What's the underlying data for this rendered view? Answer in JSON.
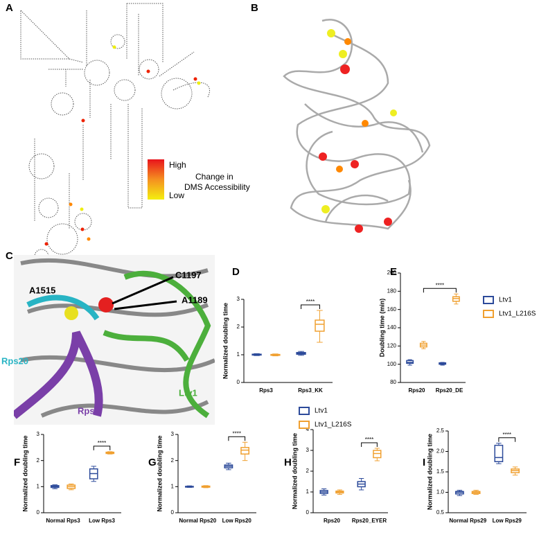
{
  "panels": {
    "A": {
      "label": "A",
      "legend_high": "High",
      "legend_low": "Low",
      "legend_title": [
        "Change in",
        "DMS Accessibility"
      ]
    },
    "B": {
      "label": "B"
    },
    "C": {
      "label": "C",
      "annotations": [
        "A1515",
        "C1197",
        "A1189",
        "Rps20",
        "Rps3",
        "Ltv1"
      ]
    }
  },
  "chart_data": [
    {
      "type": "box",
      "panel": "D",
      "ylabel": "Normalized doubling time",
      "categories": [
        "Rps3",
        "Rps3_KK"
      ],
      "ylim": [
        0,
        3
      ],
      "yticks": [
        0,
        1,
        2,
        3
      ],
      "series": [
        {
          "color": "#2c4a9a",
          "boxes": [
            [
              0.97,
              0.99,
              1.0,
              1.02,
              1.04
            ],
            [
              0.98,
              1.02,
              1.05,
              1.08,
              1.12
            ]
          ]
        },
        {
          "color": "#f0a030",
          "boxes": [
            [
              0.96,
              0.98,
              1.0,
              1.01,
              1.03
            ],
            [
              1.45,
              1.85,
              2.1,
              2.25,
              2.6
            ]
          ]
        }
      ],
      "significance": {
        "label": "****",
        "from": [
          1,
          0
        ],
        "to": [
          1,
          1
        ]
      }
    },
    {
      "type": "box",
      "panel": "E",
      "ylabel": "Doubling time (min)",
      "categories": [
        "Rps20",
        "Rps20_DE"
      ],
      "ylim": [
        80,
        200
      ],
      "yticks": [
        80,
        100,
        120,
        140,
        160,
        180,
        200
      ],
      "series": [
        {
          "name": "Ltv1",
          "color": "#2c4a9a",
          "boxes": [
            [
              99,
              101,
              102,
              104,
              105
            ],
            [
              99,
              100,
              101,
              101.5,
              102
            ]
          ]
        },
        {
          "name": "Ltv1_L216S",
          "color": "#f0a030",
          "boxes": [
            [
              117,
              119,
              121,
              123,
              125
            ],
            [
              166,
              169,
              172,
              174,
              177
            ]
          ]
        }
      ],
      "significance": {
        "label": "****",
        "from": [
          0,
          1
        ],
        "to": [
          1,
          1
        ]
      }
    },
    {
      "type": "box",
      "panel": "F",
      "ylabel": "Normalized doubling time",
      "categories": [
        "Normal Rps3",
        "Low Rps3"
      ],
      "ylim": [
        0,
        3
      ],
      "yticks": [
        0,
        1,
        2,
        3
      ],
      "series": [
        {
          "color": "#2c4a9a",
          "boxes": [
            [
              0.92,
              0.97,
              1.0,
              1.04,
              1.07
            ],
            [
              1.2,
              1.3,
              1.5,
              1.68,
              1.78
            ]
          ]
        },
        {
          "color": "#f0a030",
          "boxes": [
            [
              0.88,
              0.93,
              1.0,
              1.06,
              1.1
            ],
            [
              2.25,
              2.27,
              2.3,
              2.32,
              2.34
            ]
          ]
        }
      ],
      "significance": {
        "label": "****",
        "from": [
          1,
          0
        ],
        "to": [
          1,
          1
        ]
      }
    },
    {
      "type": "box",
      "panel": "G",
      "ylabel": "Normalized doubling time",
      "categories": [
        "Normal Rps20",
        "Low Rps20"
      ],
      "ylim": [
        0,
        3
      ],
      "yticks": [
        0,
        1,
        2,
        3
      ],
      "series": [
        {
          "color": "#2c4a9a",
          "boxes": [
            [
              0.97,
              0.99,
              1.0,
              1.01,
              1.03
            ],
            [
              1.65,
              1.72,
              1.78,
              1.83,
              1.9
            ]
          ]
        },
        {
          "color": "#f0a030",
          "boxes": [
            [
              0.96,
              0.98,
              1.0,
              1.02,
              1.04
            ],
            [
              2.0,
              2.25,
              2.4,
              2.5,
              2.7
            ]
          ]
        }
      ],
      "significance": {
        "label": "****",
        "from": [
          1,
          0
        ],
        "to": [
          1,
          1
        ]
      }
    },
    {
      "type": "box",
      "panel": "H",
      "ylabel": "Normalized doubling time",
      "categories": [
        "Rps20",
        "Rps20_EYER"
      ],
      "ylim": [
        0,
        4
      ],
      "yticks": [
        0,
        1,
        2,
        3,
        4
      ],
      "series": [
        {
          "name": "Ltv1",
          "color": "#2c4a9a",
          "boxes": [
            [
              0.85,
              0.93,
              1.0,
              1.07,
              1.15
            ],
            [
              1.1,
              1.25,
              1.38,
              1.5,
              1.65
            ]
          ]
        },
        {
          "name": "Ltv1_L216S",
          "color": "#f0a030",
          "boxes": [
            [
              0.88,
              0.95,
              1.0,
              1.04,
              1.1
            ],
            [
              2.5,
              2.65,
              2.85,
              3.0,
              3.1
            ]
          ]
        }
      ],
      "significance": {
        "label": "****",
        "from": [
          1,
          0
        ],
        "to": [
          1,
          1
        ]
      }
    },
    {
      "type": "box",
      "panel": "I",
      "ylabel": "Normalized doubling time",
      "categories": [
        "Normal Rps29",
        "Low Rps29"
      ],
      "ylim": [
        0.5,
        2.5
      ],
      "yticks": [
        {
          "value": 0.5,
          "label": "0.5"
        },
        {
          "value": 1,
          "label": "1.0"
        },
        {
          "value": 1.5,
          "label": "1.5"
        },
        {
          "value": 2,
          "label": "2.0"
        },
        {
          "value": 2.5,
          "label": "2.5"
        }
      ],
      "series": [
        {
          "color": "#2c4a9a",
          "boxes": [
            [
              0.92,
              0.96,
              1.0,
              1.02,
              1.05
            ],
            [
              1.7,
              1.75,
              1.85,
              2.15,
              2.2
            ]
          ]
        },
        {
          "color": "#f0a030",
          "boxes": [
            [
              0.95,
              0.97,
              1.0,
              1.02,
              1.05
            ],
            [
              1.42,
              1.48,
              1.53,
              1.57,
              1.62
            ]
          ]
        }
      ],
      "significance": {
        "label": "****",
        "from": [
          1,
          0
        ],
        "to": [
          1,
          1
        ]
      }
    }
  ]
}
